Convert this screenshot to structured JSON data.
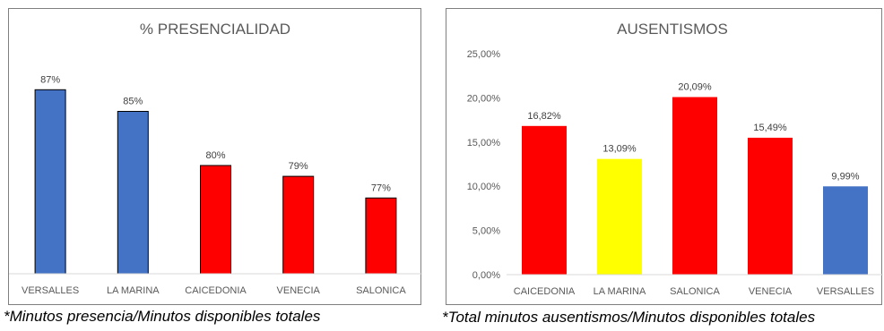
{
  "chart_data": [
    {
      "type": "bar",
      "title": "% PRESENCIALIDAD",
      "categories": [
        "VERSALLES",
        "LA MARINA",
        "CAICEDONIA",
        "VENECIA",
        "SALONICA"
      ],
      "values": [
        87,
        85,
        80,
        79,
        77
      ],
      "value_labels": [
        "87%",
        "85%",
        "80%",
        "79%",
        "77%"
      ],
      "colors": [
        "#4472c4",
        "#4472c4",
        "#ff0000",
        "#ff0000",
        "#ff0000"
      ],
      "xlabel": "",
      "ylabel": "",
      "ylim": [
        70,
        90
      ],
      "y_axis_visible": false,
      "grid": false,
      "bar_outline": "#000000"
    },
    {
      "type": "bar",
      "title": "AUSENTISMOS",
      "categories": [
        "CAICEDONIA",
        "LA MARINA",
        "SALONICA",
        "VENECIA",
        "VERSALLES"
      ],
      "values": [
        16.82,
        13.09,
        20.09,
        15.49,
        9.99
      ],
      "value_labels": [
        "16,82%",
        "13,09%",
        "20,09%",
        "15,49%",
        "9,99%"
      ],
      "colors": [
        "#ff0000",
        "#ffff00",
        "#ff0000",
        "#ff0000",
        "#4472c4"
      ],
      "xlabel": "",
      "ylabel": "",
      "ylim": [
        0,
        25
      ],
      "yticks": [
        0,
        5,
        10,
        15,
        20,
        25
      ],
      "ytick_labels": [
        "0,00%",
        "5,00%",
        "10,00%",
        "15,00%",
        "20,00%",
        "25,00%"
      ],
      "y_axis_visible": true,
      "grid": false
    }
  ],
  "footnotes": {
    "left": "*Minutos presencia/Minutos disponibles totales",
    "right": "*Total minutos ausentismos/Minutos disponibles totales"
  }
}
